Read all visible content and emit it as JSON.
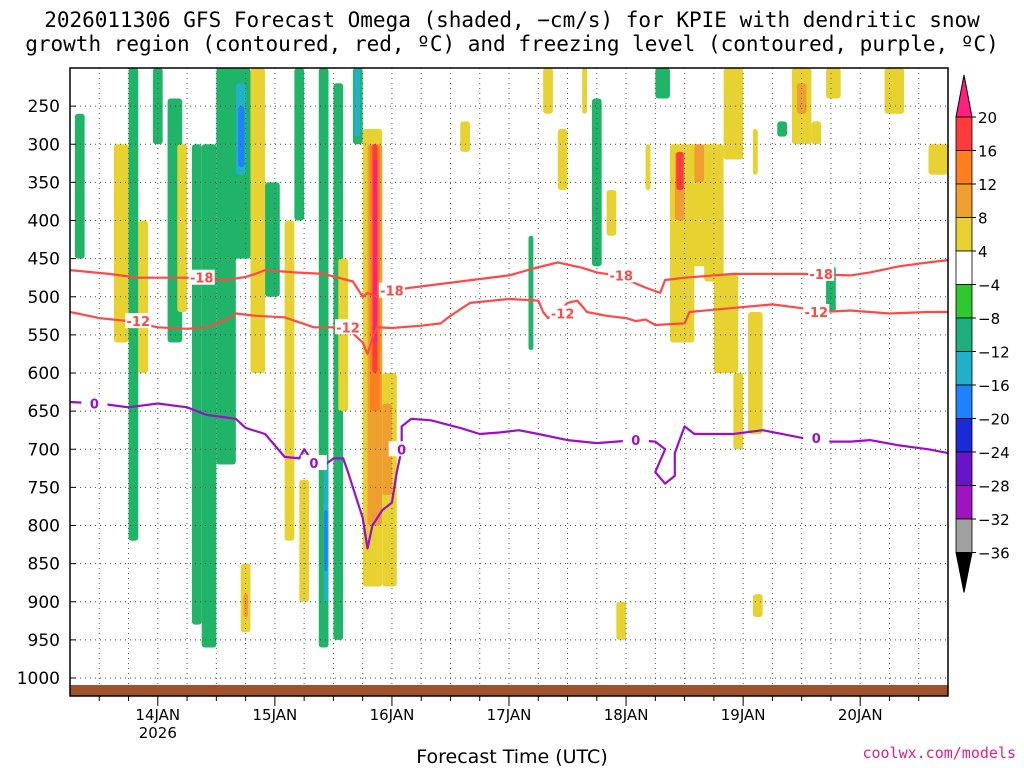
{
  "chart_data": {
    "type": "heatmap",
    "title_line1": "2026011306 GFS Forecast Omega (shaded, −cm/s) for KPIE with dendritic snow",
    "title_line2": "growth region (contoured, red, ºC) and freezing level (contoured, purple, ºC)",
    "xlabel": "Forecast Time (UTC)",
    "credit": "coolwx.com/models",
    "x_range_hours": [
      0,
      180
    ],
    "x_ticks": [
      {
        "hour": 18,
        "label": "14JAN",
        "sub": "2026"
      },
      {
        "hour": 42,
        "label": "15JAN",
        "sub": ""
      },
      {
        "hour": 66,
        "label": "16JAN",
        "sub": ""
      },
      {
        "hour": 90,
        "label": "17JAN",
        "sub": ""
      },
      {
        "hour": 114,
        "label": "18JAN",
        "sub": ""
      },
      {
        "hour": 138,
        "label": "19JAN",
        "sub": ""
      },
      {
        "hour": 162,
        "label": "20JAN",
        "sub": ""
      }
    ],
    "y_ticks": [
      250,
      300,
      350,
      400,
      450,
      500,
      550,
      600,
      650,
      700,
      750,
      800,
      850,
      900,
      950,
      1000
    ],
    "colorbar": {
      "labels": [
        "20",
        "16",
        "12",
        "8",
        "4",
        "−4",
        "−8",
        "−12",
        "−16",
        "−20",
        "−24",
        "−28",
        "−32",
        "−36"
      ],
      "colors": [
        "#ff1f7f",
        "#ff3a3a",
        "#ff7f20",
        "#ef9f2f",
        "#e8d232",
        "#ffffff",
        "#2fc82f",
        "#1faf7f",
        "#22b0c8",
        "#1e82ff",
        "#1a2ad8",
        "#6a14c8",
        "#a014c0",
        "#a0a0a0",
        "#000000"
      ]
    },
    "omega_patches": [
      {
        "t0": 1,
        "t1": 3,
        "p0": 260,
        "p1": 450,
        "v": -8
      },
      {
        "t0": 9,
        "t1": 12,
        "p0": 300,
        "p1": 560,
        "v": 4
      },
      {
        "t0": 12,
        "t1": 14,
        "p0": 200,
        "p1": 820,
        "v": -8
      },
      {
        "t0": 14,
        "t1": 16,
        "p0": 400,
        "p1": 600,
        "v": 4
      },
      {
        "t0": 17,
        "t1": 19,
        "p0": 200,
        "p1": 300,
        "v": -8
      },
      {
        "t0": 20,
        "t1": 23,
        "p0": 240,
        "p1": 560,
        "v": -8
      },
      {
        "t0": 22,
        "t1": 24,
        "p0": 300,
        "p1": 520,
        "v": 4
      },
      {
        "t0": 25,
        "t1": 27,
        "p0": 300,
        "p1": 930,
        "v": -8
      },
      {
        "t0": 27,
        "t1": 30,
        "p0": 300,
        "p1": 960,
        "v": -8
      },
      {
        "t0": 30,
        "t1": 34,
        "p0": 200,
        "p1": 720,
        "v": -8
      },
      {
        "t0": 33,
        "t1": 37,
        "p0": 200,
        "p1": 450,
        "v": -8
      },
      {
        "t0": 34,
        "t1": 36,
        "p0": 220,
        "p1": 340,
        "v": -12
      },
      {
        "t0": 34.5,
        "t1": 35.8,
        "p0": 250,
        "p1": 330,
        "v": -16
      },
      {
        "t0": 37,
        "t1": 40,
        "p0": 200,
        "p1": 600,
        "v": 4
      },
      {
        "t0": 35,
        "t1": 37,
        "p0": 850,
        "p1": 940,
        "v": 4
      },
      {
        "t0": 35.6,
        "t1": 36.5,
        "p0": 890,
        "p1": 920,
        "v": 8
      },
      {
        "t0": 40,
        "t1": 43,
        "p0": 350,
        "p1": 500,
        "v": -8
      },
      {
        "t0": 44,
        "t1": 46,
        "p0": 400,
        "p1": 820,
        "v": 4
      },
      {
        "t0": 46,
        "t1": 48,
        "p0": 200,
        "p1": 400,
        "v": -8
      },
      {
        "t0": 47,
        "t1": 49,
        "p0": 740,
        "p1": 900,
        "v": 4
      },
      {
        "t0": 51,
        "t1": 53,
        "p0": 200,
        "p1": 960,
        "v": -8
      },
      {
        "t0": 52,
        "t1": 53,
        "p0": 720,
        "p1": 900,
        "v": -12
      },
      {
        "t0": 52.1,
        "t1": 52.8,
        "p0": 780,
        "p1": 860,
        "v": -16
      },
      {
        "t0": 54,
        "t1": 56,
        "p0": 220,
        "p1": 950,
        "v": -8
      },
      {
        "t0": 55,
        "t1": 57,
        "p0": 450,
        "p1": 650,
        "v": 4
      },
      {
        "t0": 58,
        "t1": 60,
        "p0": 200,
        "p1": 300,
        "v": -8
      },
      {
        "t0": 58.3,
        "t1": 59.5,
        "p0": 200,
        "p1": 290,
        "v": -12
      },
      {
        "t0": 60,
        "t1": 64,
        "p0": 280,
        "p1": 880,
        "v": 4
      },
      {
        "t0": 61,
        "t1": 64,
        "p0": 300,
        "p1": 800,
        "v": 8
      },
      {
        "t0": 61.5,
        "t1": 63.5,
        "p0": 300,
        "p1": 650,
        "v": 12
      },
      {
        "t0": 62,
        "t1": 63,
        "p0": 300,
        "p1": 600,
        "v": 16
      },
      {
        "t0": 62.2,
        "t1": 63,
        "p0": 320,
        "p1": 560,
        "v": 20
      },
      {
        "t0": 64,
        "t1": 67,
        "p0": 600,
        "p1": 880,
        "v": 4
      },
      {
        "t0": 64,
        "t1": 66,
        "p0": 640,
        "p1": 760,
        "v": 8
      },
      {
        "t0": 80,
        "t1": 82,
        "p0": 270,
        "p1": 310,
        "v": 4
      },
      {
        "t0": 94,
        "t1": 95,
        "p0": 420,
        "p1": 570,
        "v": -8
      },
      {
        "t0": 97,
        "t1": 99,
        "p0": 200,
        "p1": 260,
        "v": 4
      },
      {
        "t0": 100,
        "t1": 102,
        "p0": 280,
        "p1": 360,
        "v": 4
      },
      {
        "t0": 105,
        "t1": 106,
        "p0": 200,
        "p1": 260,
        "v": 4
      },
      {
        "t0": 107,
        "t1": 109,
        "p0": 240,
        "p1": 460,
        "v": -8
      },
      {
        "t0": 110,
        "t1": 112,
        "p0": 360,
        "p1": 420,
        "v": 4
      },
      {
        "t0": 112,
        "t1": 114,
        "p0": 900,
        "p1": 950,
        "v": 4
      },
      {
        "t0": 118,
        "t1": 119,
        "p0": 300,
        "p1": 360,
        "v": 4
      },
      {
        "t0": 120,
        "t1": 123,
        "p0": 200,
        "p1": 240,
        "v": -10
      },
      {
        "t0": 123,
        "t1": 128,
        "p0": 300,
        "p1": 560,
        "v": 4
      },
      {
        "t0": 124,
        "t1": 126,
        "p0": 310,
        "p1": 400,
        "v": 8
      },
      {
        "t0": 124.3,
        "t1": 125.8,
        "p0": 310,
        "p1": 360,
        "v": 16
      },
      {
        "t0": 127,
        "t1": 134,
        "p0": 300,
        "p1": 460,
        "v": 4
      },
      {
        "t0": 128,
        "t1": 130,
        "p0": 300,
        "p1": 350,
        "v": 8
      },
      {
        "t0": 130,
        "t1": 134,
        "p0": 380,
        "p1": 480,
        "v": 4
      },
      {
        "t0": 132,
        "t1": 137,
        "p0": 470,
        "p1": 600,
        "v": 4
      },
      {
        "t0": 134,
        "t1": 138,
        "p0": 200,
        "p1": 320,
        "v": 4
      },
      {
        "t0": 136,
        "t1": 138,
        "p0": 600,
        "p1": 700,
        "v": 4
      },
      {
        "t0": 139,
        "t1": 142,
        "p0": 520,
        "p1": 680,
        "v": 4
      },
      {
        "t0": 140,
        "t1": 141,
        "p0": 280,
        "p1": 340,
        "v": 4
      },
      {
        "t0": 140,
        "t1": 142,
        "p0": 890,
        "p1": 920,
        "v": 4
      },
      {
        "t0": 145,
        "t1": 147,
        "p0": 270,
        "p1": 290,
        "v": -8
      },
      {
        "t0": 148,
        "t1": 152,
        "p0": 200,
        "p1": 300,
        "v": 4
      },
      {
        "t0": 149,
        "t1": 151,
        "p0": 220,
        "p1": 260,
        "v": 8
      },
      {
        "t0": 152,
        "t1": 154,
        "p0": 270,
        "p1": 300,
        "v": 4
      },
      {
        "t0": 155,
        "t1": 157,
        "p0": 460,
        "p1": 520,
        "v": -8
      },
      {
        "t0": 155,
        "t1": 158,
        "p0": 200,
        "p1": 240,
        "v": 4
      },
      {
        "t0": 167,
        "t1": 171,
        "p0": 200,
        "p1": 260,
        "v": 4
      },
      {
        "t0": 176,
        "t1": 180,
        "p0": 300,
        "p1": 340,
        "v": 4
      }
    ],
    "contours": [
      {
        "name": "dgz-minus18",
        "color": "#ff4848",
        "label": "-18",
        "points": [
          [
            0,
            465
          ],
          [
            8,
            470
          ],
          [
            14,
            475
          ],
          [
            24,
            475
          ],
          [
            32,
            478
          ],
          [
            36,
            474
          ],
          [
            38,
            470
          ],
          [
            40,
            465
          ],
          [
            46,
            468
          ],
          [
            52,
            470
          ],
          [
            58,
            480
          ],
          [
            60,
            500
          ],
          [
            61,
            495
          ],
          [
            63,
            500
          ],
          [
            66,
            492
          ],
          [
            70,
            488
          ],
          [
            80,
            480
          ],
          [
            90,
            472
          ],
          [
            95,
            463
          ],
          [
            100,
            455
          ],
          [
            105,
            462
          ],
          [
            108,
            468
          ],
          [
            112,
            472
          ],
          [
            118,
            488
          ],
          [
            121,
            495
          ],
          [
            122,
            478
          ],
          [
            126,
            475
          ],
          [
            136,
            470
          ],
          [
            150,
            470
          ],
          [
            160,
            472
          ],
          [
            164,
            468
          ],
          [
            170,
            460
          ],
          [
            176,
            455
          ],
          [
            180,
            452
          ]
        ],
        "label_hours": [
          27,
          66,
          113,
          154
        ]
      },
      {
        "name": "dgz-minus12",
        "color": "#ff4848",
        "label": "-12",
        "points": [
          [
            0,
            520
          ],
          [
            6,
            528
          ],
          [
            12,
            532
          ],
          [
            18,
            540
          ],
          [
            24,
            542
          ],
          [
            28,
            540
          ],
          [
            32,
            530
          ],
          [
            34,
            522
          ],
          [
            38,
            525
          ],
          [
            44,
            527
          ],
          [
            50,
            540
          ],
          [
            56,
            540
          ],
          [
            58,
            548
          ],
          [
            60,
            560
          ],
          [
            61,
            575
          ],
          [
            62,
            555
          ],
          [
            63,
            540
          ],
          [
            66,
            541
          ],
          [
            72,
            538
          ],
          [
            76,
            535
          ],
          [
            78,
            525
          ],
          [
            82,
            508
          ],
          [
            90,
            503
          ],
          [
            96,
            505
          ],
          [
            97,
            520
          ],
          [
            98,
            528
          ],
          [
            100,
            522
          ],
          [
            102,
            508
          ],
          [
            104,
            505
          ],
          [
            106,
            520
          ],
          [
            110,
            525
          ],
          [
            114,
            528
          ],
          [
            116,
            532
          ],
          [
            118,
            530
          ],
          [
            120,
            537
          ],
          [
            126,
            535
          ],
          [
            127,
            520
          ],
          [
            132,
            517
          ],
          [
            144,
            510
          ],
          [
            150,
            515
          ],
          [
            154,
            520
          ],
          [
            160,
            518
          ],
          [
            168,
            522
          ],
          [
            176,
            520
          ],
          [
            180,
            520
          ]
        ],
        "label_hours": [
          14,
          57,
          101,
          153
        ]
      },
      {
        "name": "freezing-level-0",
        "color": "#9a10c8",
        "label": "0",
        "points": [
          [
            0,
            638
          ],
          [
            6,
            640
          ],
          [
            12,
            645
          ],
          [
            18,
            640
          ],
          [
            24,
            645
          ],
          [
            28,
            655
          ],
          [
            34,
            660
          ],
          [
            36,
            672
          ],
          [
            40,
            680
          ],
          [
            44,
            710
          ],
          [
            47,
            712
          ],
          [
            48,
            700
          ],
          [
            50,
            718
          ],
          [
            52,
            722
          ],
          [
            54,
            712
          ],
          [
            56,
            712
          ],
          [
            57,
            730
          ],
          [
            58,
            750
          ],
          [
            60,
            790
          ],
          [
            61,
            830
          ],
          [
            62,
            800
          ],
          [
            64,
            780
          ],
          [
            66,
            770
          ],
          [
            67,
            730
          ],
          [
            68,
            700
          ],
          [
            68,
            670
          ],
          [
            70,
            660
          ],
          [
            74,
            662
          ],
          [
            80,
            672
          ],
          [
            84,
            680
          ],
          [
            88,
            678
          ],
          [
            92,
            675
          ],
          [
            96,
            680
          ],
          [
            102,
            688
          ],
          [
            108,
            692
          ],
          [
            112,
            690
          ],
          [
            116,
            688
          ],
          [
            120,
            690
          ],
          [
            122,
            700
          ],
          [
            120,
            730
          ],
          [
            122,
            745
          ],
          [
            124,
            735
          ],
          [
            124,
            705
          ],
          [
            126,
            670
          ],
          [
            128,
            680
          ],
          [
            136,
            680
          ],
          [
            142,
            675
          ],
          [
            150,
            685
          ],
          [
            156,
            690
          ],
          [
            160,
            690
          ],
          [
            164,
            688
          ],
          [
            170,
            695
          ],
          [
            176,
            700
          ],
          [
            180,
            705
          ]
        ],
        "label_hours": [
          5,
          50,
          68,
          116,
          153
        ]
      }
    ]
  }
}
